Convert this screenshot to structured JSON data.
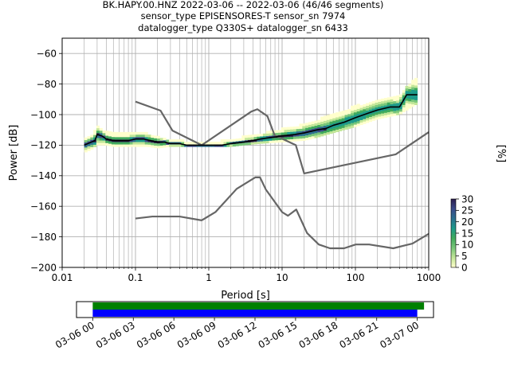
{
  "title": {
    "line1": "BK.HAPY.00.HNZ   2022-03-06 -- 2022-03-06  (46/46 segments)",
    "line2": "sensor_type EPISENSORES-T sensor_sn 7974",
    "line3": "datalogger_type Q330S+ datalogger_sn 6433"
  },
  "chart_data": [
    {
      "type": "heatmap",
      "xlabel": "Period [s]",
      "ylabel": "Power [dB]",
      "xscale": "log",
      "xlim": [
        0.01,
        1000
      ],
      "ylim": [
        -200,
        -50
      ],
      "x_ticks": [
        0.01,
        0.1,
        1,
        10,
        100,
        1000
      ],
      "x_tick_labels": [
        "0.01",
        "0.1",
        "1",
        "10",
        "100",
        "1000"
      ],
      "y_ticks": [
        -200,
        -180,
        -160,
        -140,
        -120,
        -100,
        -80,
        -60
      ],
      "y_tick_labels": [
        "−200",
        "−180",
        "−160",
        "−140",
        "−120",
        "−100",
        "−80",
        "−60"
      ],
      "grid": true,
      "colorbar": {
        "label": "[%]",
        "range": [
          0,
          30
        ],
        "ticks": [
          0,
          5,
          10,
          15,
          20,
          25,
          30
        ],
        "tick_labels": [
          "0",
          "5",
          "10",
          "15",
          "20",
          "25",
          "30"
        ],
        "colors": [
          "#ffffcc",
          "#c2e699",
          "#78c679",
          "#41ab5d",
          "#1d9a8a",
          "#2c6f8f",
          "#3b4a8a",
          "#2d1e4f"
        ]
      },
      "series": [
        {
          "role": "mode",
          "color": "#000000",
          "x": [
            0.02,
            0.025,
            0.028,
            0.03,
            0.035,
            0.04,
            0.05,
            0.06,
            0.08,
            0.1,
            0.13,
            0.16,
            0.2,
            0.25,
            0.3,
            0.4,
            0.5,
            0.7,
            1,
            1.5,
            2,
            3,
            4,
            5,
            7,
            10,
            15,
            20,
            30,
            40,
            50,
            70,
            100,
            150,
            200,
            300,
            400,
            500,
            700
          ],
          "y": [
            -120,
            -118,
            -117,
            -113,
            -114,
            -116,
            -117,
            -117,
            -117,
            -116,
            -116,
            -117,
            -118,
            -118,
            -119,
            -119,
            -120,
            -120,
            -120,
            -120,
            -119,
            -118,
            -117,
            -116,
            -115,
            -114,
            -113,
            -112,
            -110,
            -109,
            -107,
            -105,
            -102,
            -99,
            -97,
            -95,
            -95,
            -87,
            -87
          ]
        },
        {
          "role": "nhnm",
          "color": "#666666",
          "x": [
            0.1,
            0.22,
            0.32,
            0.8,
            3.8,
            4.6,
            6.3,
            7.9,
            15.4,
            20,
            354.8,
            1000
          ],
          "y": [
            -91.5,
            -97.4,
            -110.5,
            -120,
            -98,
            -96.5,
            -101,
            -113.5,
            -120,
            -138.5,
            -126,
            -111.5
          ]
        },
        {
          "role": "nlnm",
          "color": "#666666",
          "x": [
            0.1,
            0.17,
            0.4,
            0.8,
            1.24,
            2.4,
            4.3,
            5.0,
            6.0,
            10.0,
            12.0,
            15.6,
            21.9,
            31.6,
            45.0,
            70.0,
            101.0,
            154.0,
            328.0,
            600.0,
            1000.0
          ],
          "y": [
            -168,
            -166.7,
            -166.7,
            -169.2,
            -163.7,
            -148.6,
            -141.1,
            -141.1,
            -149,
            -163.8,
            -166.2,
            -162.1,
            -177.5,
            -185,
            -187.5,
            -187.5,
            -185,
            -185,
            -187.5,
            -184.4,
            -178
          ]
        }
      ],
      "heatmap_band": {
        "description_values": "probability density cells along the mode",
        "x": [
          0.02,
          0.025,
          0.03,
          0.04,
          0.05,
          0.07,
          0.1,
          0.15,
          0.2,
          0.3,
          0.5,
          1,
          2,
          3,
          5,
          10,
          20,
          30,
          50,
          100,
          200,
          400,
          700
        ],
        "y_low": [
          -125,
          -123,
          -120,
          -120,
          -121,
          -121,
          -121,
          -121,
          -122,
          -121,
          -121,
          -121,
          -121,
          -120,
          -119,
          -118,
          -117,
          -115,
          -112,
          -108,
          -103,
          -100,
          -93
        ],
        "y_high": [
          -116,
          -114,
          -108,
          -112,
          -113,
          -113,
          -113,
          -113,
          -115,
          -117,
          -118,
          -119,
          -117,
          -115,
          -113,
          -110,
          -107,
          -104,
          -100,
          -95,
          -91,
          -88,
          -75
        ]
      }
    },
    {
      "type": "timeline",
      "x_tick_labels": [
        "03-06 00",
        "03-06 03",
        "03-06 06",
        "03-06 09",
        "03-06 12",
        "03-06 15",
        "03-06 18",
        "03-06 21",
        "03-07 00"
      ],
      "xlim_hours": [
        -1.2,
        25.2
      ],
      "bars": [
        {
          "color": "#008000",
          "start_hour": 0.0,
          "end_hour": 24.5
        },
        {
          "color": "#0000ff",
          "start_hour": 0.0,
          "end_hour": 24.0
        }
      ]
    }
  ]
}
